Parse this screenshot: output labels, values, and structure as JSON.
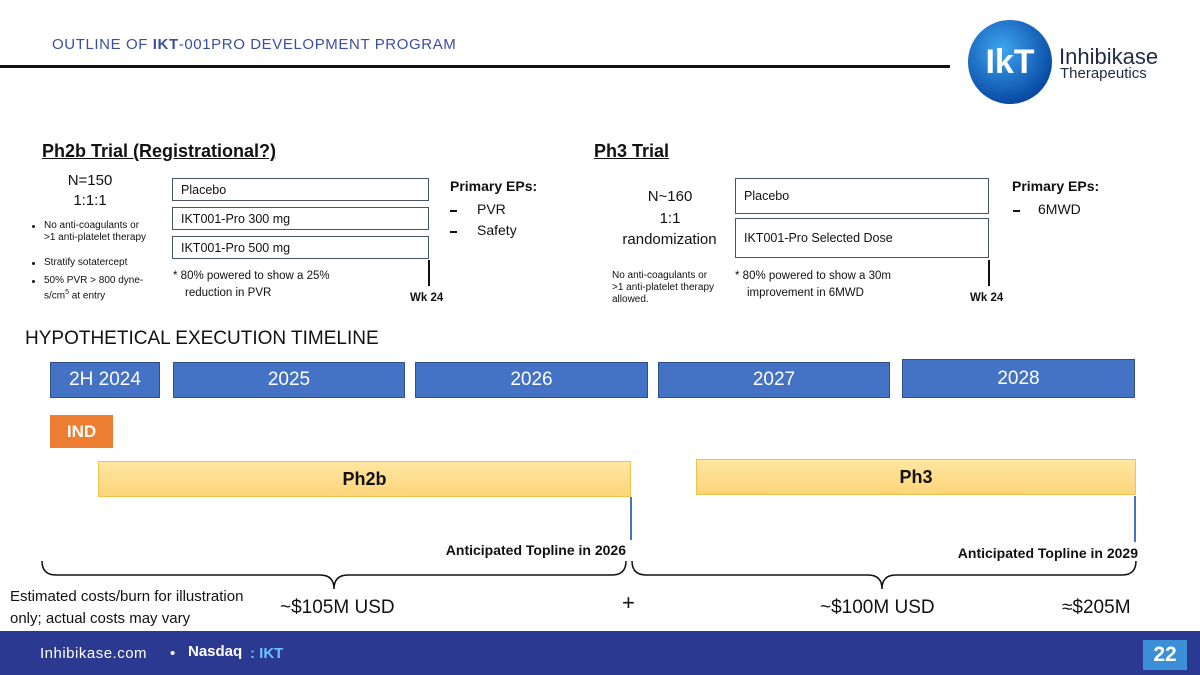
{
  "header": {
    "title_prefix": "OUTLINE OF ",
    "title_bold": "IKT",
    "title_rest": "-001PRO DEVELOPMENT PROGRAM",
    "logo_mark": "IkT",
    "company_line1": "Inhibikase",
    "company_line2": "Therapeutics"
  },
  "ph2b": {
    "heading": "Ph2b Trial (Registrational?)",
    "n": "N=150",
    "ratio": "1:1:1",
    "criteria": [
      "No anti-coagulants or >1 anti-platelet therapy",
      "Stratify sotatercept",
      {
        "text": "50%  PVR > 800 dyne-s/cm",
        "sup": "5",
        "tail": " at entry"
      }
    ],
    "arms": [
      "Placebo",
      "IKT001-Pro 300 mg",
      "IKT001-Pro 500 mg"
    ],
    "note_line1": "* 80% powered to show a 25%",
    "note_line2": "reduction in PVR",
    "endpoints_title": "Primary EPs:",
    "endpoints": [
      "PVR",
      "Safety"
    ],
    "week": "Wk 24"
  },
  "ph3": {
    "heading": "Ph3 Trial",
    "n": "N~160",
    "ratio": "1:1",
    "design": "randomization",
    "restriction": "No anti-coagulants or >1 anti-platelet therapy allowed.",
    "arms": [
      "Placebo",
      "IKT001-Pro Selected Dose"
    ],
    "note_line1": "* 80% powered to show a 30m",
    "note_line2": "improvement in 6MWD",
    "endpoints_title": "Primary EPs:",
    "endpoints": [
      "6MWD"
    ],
    "week": "Wk 24"
  },
  "timeline": {
    "title": "HYPOTHETICAL EXECUTION TIMELINE",
    "years": [
      "2H 2024",
      "2025",
      "2026",
      "2027",
      "2028"
    ],
    "milestone": "IND",
    "phases": [
      "Ph2b",
      "Ph3"
    ],
    "toplines": [
      "Anticipated Topline in 2026",
      "Anticipated Topline in 2029"
    ],
    "cost_note": "Estimated costs/burn for illustration only; actual costs may vary",
    "costs": [
      "~$105M USD",
      "~$100M USD",
      "≈$205M"
    ],
    "plus": "+"
  },
  "footer": {
    "site": "Inhibikase.com",
    "separator": "•",
    "exchange": "Nasdaq",
    "ticker": ": IKT",
    "page": "22"
  }
}
